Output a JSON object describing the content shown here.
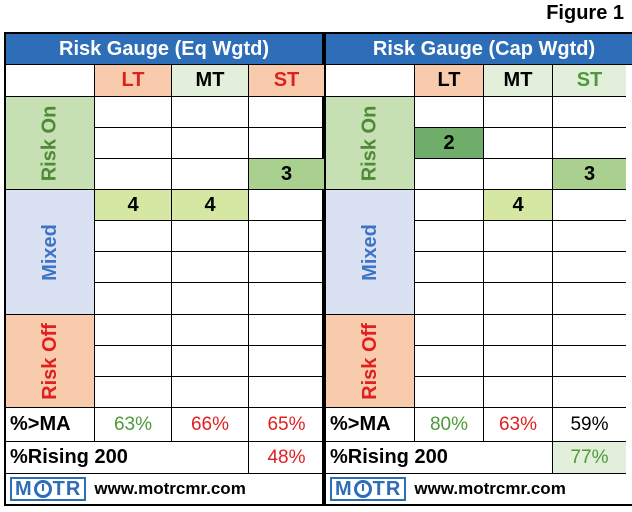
{
  "figure_label": "Figure 1",
  "panels": [
    {
      "title": "Risk Gauge (Eq Wgtd)",
      "headers": [
        "LT",
        "MT",
        "ST"
      ],
      "bands": [
        "Risk On",
        "Mixed",
        "Risk Off"
      ],
      "values": {
        "risk_on_row3_st": "3",
        "mixed_row1_lt": "4",
        "mixed_row1_mt": "4"
      },
      "pct_ma_label": "%>MA",
      "pct_ma": [
        "63%",
        "66%",
        "65%"
      ],
      "pct_rising_label": "%Rising 200",
      "pct_rising": "48%",
      "logo_text": [
        "M",
        "TR"
      ],
      "website": "www.motrcmr.com"
    },
    {
      "title": "Risk Gauge (Cap Wgtd)",
      "headers": [
        "LT",
        "MT",
        "ST"
      ],
      "bands": [
        "Risk On",
        "Mixed",
        "Risk Off"
      ],
      "values": {
        "risk_on_row2_lt": "2",
        "risk_on_row3_st": "3",
        "mixed_row1_mt": "4"
      },
      "pct_ma_label": "%>MA",
      "pct_ma": [
        "80%",
        "63%",
        "59%"
      ],
      "pct_rising_label": "%Rising 200",
      "pct_rising": "77%",
      "logo_text": [
        "M",
        "TR"
      ],
      "website": "www.motrcmr.com"
    }
  ]
}
